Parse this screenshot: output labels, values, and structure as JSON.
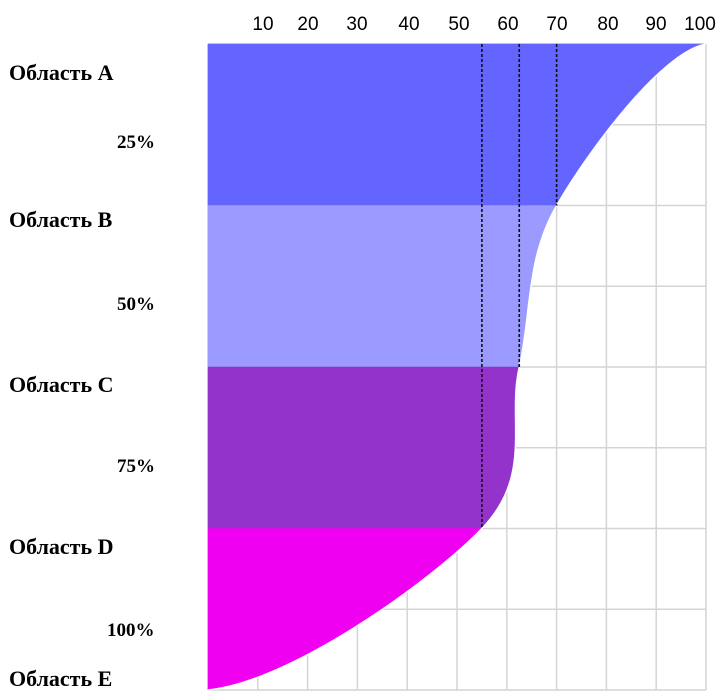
{
  "chart_data": {
    "type": "area",
    "title": "",
    "xlabel": "",
    "ylabel": "",
    "x_ticks": [
      "10",
      "20",
      "30",
      "40",
      "50",
      "60",
      "70",
      "80",
      "90",
      "100"
    ],
    "xlim": [
      0,
      100
    ],
    "grid": true,
    "row_labels": [
      "Область A",
      "Область B",
      "Область C",
      "Область D",
      "Область E"
    ],
    "percent_labels": [
      "25%",
      "50%",
      "75%",
      "100%"
    ],
    "bands": [
      {
        "from": "Область A",
        "to": "Область B",
        "color": "#6464ff"
      },
      {
        "from": "Область B",
        "to": "Область C",
        "color": "#9a9aff"
      },
      {
        "from": "Область C",
        "to": "Область D",
        "color": "#9333cb"
      },
      {
        "from": "Область D",
        "to": "Область E",
        "color": "#f000f0"
      }
    ],
    "curve": {
      "y_fraction": [
        0,
        0.25,
        0.5,
        0.75,
        1.0
      ],
      "x": [
        100,
        70,
        62.5,
        55,
        0
      ]
    },
    "reference_lines_x": [
      55,
      62.5,
      70
    ]
  }
}
